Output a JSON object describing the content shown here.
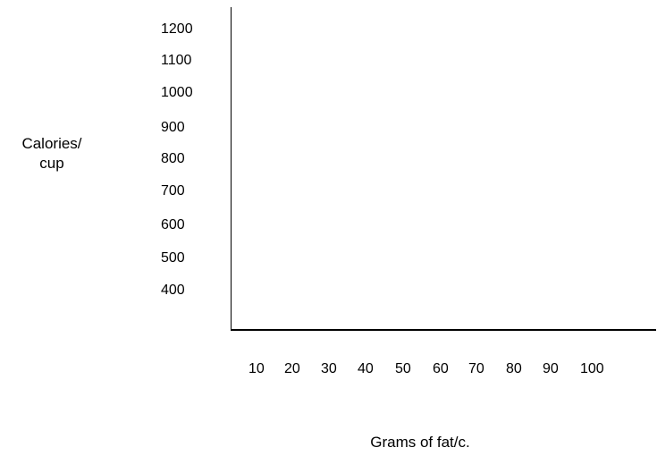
{
  "chart_data": {
    "type": "scatter",
    "title": "",
    "xlabel": "Grams of fat/c.",
    "ylabel_lines": [
      "Calories/",
      "cup"
    ],
    "x_ticks": [
      "10",
      "20",
      "30",
      "40",
      "50",
      "60",
      "70",
      "80",
      "90",
      "100"
    ],
    "y_ticks": [
      "1200",
      "1100",
      "1000",
      "900",
      "800",
      "700",
      "600",
      "500",
      "400"
    ],
    "series": [],
    "grid": false,
    "legend": "none"
  }
}
